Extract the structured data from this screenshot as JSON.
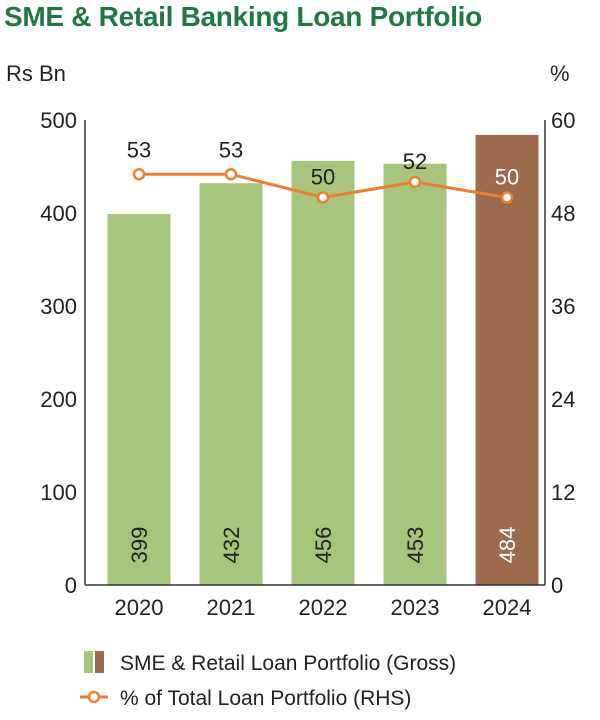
{
  "colors": {
    "title": "#1f7a3e",
    "bar": "#a7c47c",
    "bar_highlight": "#9c6b4e",
    "line": "#f07f2d",
    "axis": "#333333",
    "text": "#222222"
  },
  "chart_data": {
    "type": "bar",
    "title": "SME & Retail Banking Loan Portfolio",
    "ylabel_left": "Rs Bn",
    "ylabel_right": "%",
    "categories": [
      "2020",
      "2021",
      "2022",
      "2023",
      "2024"
    ],
    "ylim_left": [
      0,
      500
    ],
    "ylim_right": [
      0,
      60
    ],
    "yticks_left": [
      "0",
      "100",
      "200",
      "300",
      "400",
      "500"
    ],
    "yticks_right": [
      "0",
      "12",
      "24",
      "36",
      "48",
      "60"
    ],
    "grid": false,
    "legend_position": "bottom",
    "highlight_category": "2024",
    "series": [
      {
        "name": "SME & Retail Loan Portfolio (Gross)",
        "type": "bar",
        "axis": "left",
        "values": [
          399,
          432,
          456,
          453,
          484
        ],
        "labels": [
          "399",
          "432",
          "456",
          "453",
          "484"
        ]
      },
      {
        "name": "% of Total Loan Portfolio (RHS)",
        "type": "line",
        "axis": "right",
        "marker": "open-circle",
        "values": [
          53,
          53,
          50,
          52,
          50
        ],
        "labels": [
          "53",
          "53",
          "50",
          "52",
          "50"
        ]
      }
    ]
  }
}
